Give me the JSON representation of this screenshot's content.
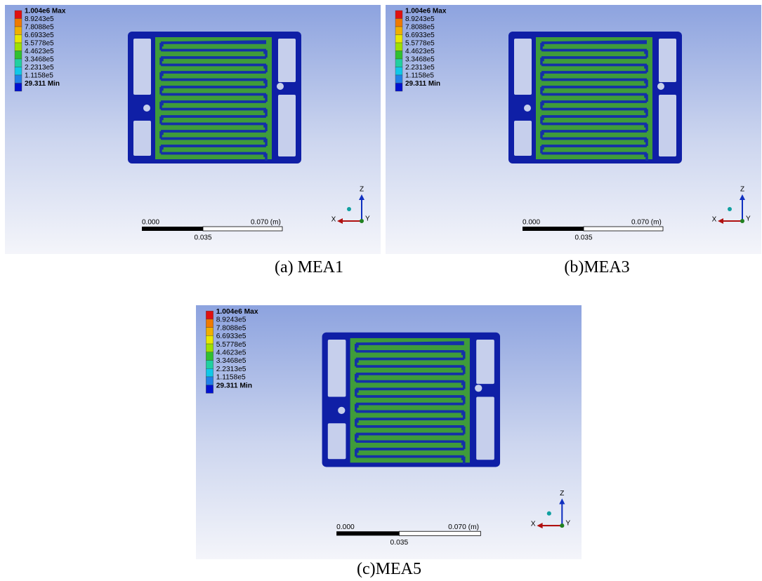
{
  "panels": [
    {
      "legend": [
        "1.004e6 Max",
        "8.9243e5",
        "7.8088e5",
        "6.6933e5",
        "5.5778e5",
        "4.4623e5",
        "3.3468e5",
        "2.2313e5",
        "1.1158e5",
        "29.311 Min"
      ],
      "scale": {
        "start": "0.000",
        "end": "0.070 (m)",
        "mid": "0.035"
      },
      "axes": {
        "z": "Z",
        "x": "X",
        "y": "Y"
      },
      "caption": "(a) MEA1"
    },
    {
      "legend": [
        "1.004e6 Max",
        "8.9243e5",
        "7.8088e5",
        "6.6933e5",
        "5.5778e5",
        "4.4623e5",
        "3.3468e5",
        "2.2313e5",
        "1.1158e5",
        "29.311 Min"
      ],
      "scale": {
        "start": "0.000",
        "end": "0.070 (m)",
        "mid": "0.035"
      },
      "axes": {
        "z": "Z",
        "x": "X",
        "y": "Y"
      },
      "caption": "(b)MEA3"
    },
    {
      "legend": [
        "1.004e6 Max",
        "8.9243e5",
        "7.8088e5",
        "6.6933e5",
        "5.5778e5",
        "4.4623e5",
        "3.3468e5",
        "2.2313e5",
        "1.1158e5",
        "29.311 Min"
      ],
      "scale": {
        "start": "0.000",
        "end": "0.070 (m)",
        "mid": "0.035"
      },
      "axes": {
        "z": "Z",
        "x": "X",
        "y": "Y"
      },
      "caption": "(c)MEA5"
    }
  ]
}
